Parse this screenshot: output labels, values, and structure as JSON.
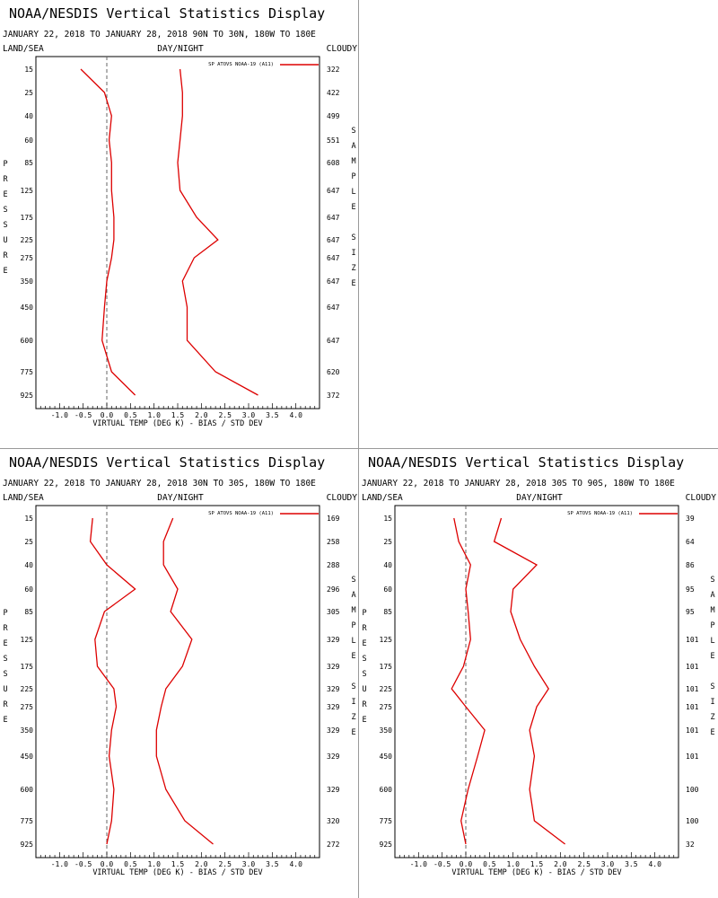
{
  "header": {
    "title": "NOAA/NESDIS Vertical Statistics Display",
    "top_left": "LAND/SEA",
    "top_center": "DAY/NIGHT",
    "top_right": "CLOUDY",
    "left_axis_label": "PRESSURE",
    "right_axis_label": "SAMPLE SIZE",
    "legend_label": "SP ATOVS NOAA-19 (A11)"
  },
  "colors": {
    "series": "#dd0000",
    "zero_line": "#666666",
    "frame": "#000000"
  },
  "chart_data": [
    {
      "type": "line",
      "subtitle": "JANUARY 22, 2018 TO JANUARY 28, 2018  90N TO 30N, 180W TO 180E",
      "xlabel": "VIRTUAL TEMP (DEG K) - BIAS / STD DEV",
      "ylabel": "PRESSURE",
      "xlim": [
        -1.5,
        4.5
      ],
      "x_ticks": [
        "-1.0",
        "-0.5",
        "0.0",
        "0.5",
        "1.0",
        "1.5",
        "2.0",
        "2.5",
        "3.0",
        "3.5",
        "4.0"
      ],
      "pressure_levels": [
        "15",
        "25",
        "40",
        "60",
        "85",
        "125",
        "175",
        "225",
        "275",
        "350",
        "450",
        "600",
        "775",
        "925"
      ],
      "sample_size": [
        "322",
        "422",
        "499",
        "551",
        "608",
        "647",
        "647",
        "647",
        "647",
        "647",
        "647",
        "647",
        "620",
        "372"
      ],
      "legend_position": "top-right",
      "series": [
        {
          "name": "SP ATOVS NOAA-19 (A11)",
          "bias": [
            -0.55,
            -0.05,
            0.1,
            0.05,
            0.1,
            0.1,
            0.15,
            0.15,
            0.1,
            0.0,
            -0.05,
            -0.1,
            0.1,
            0.6
          ],
          "std_dev": [
            1.55,
            1.6,
            1.6,
            1.55,
            1.5,
            1.55,
            1.9,
            2.35,
            1.85,
            1.6,
            1.7,
            1.7,
            2.3,
            3.2
          ]
        }
      ]
    },
    {
      "type": "line",
      "subtitle": "JANUARY 22, 2018 TO JANUARY 28, 2018  30N TO 30S, 180W TO 180E",
      "xlabel": "VIRTUAL TEMP (DEG K) - BIAS / STD DEV",
      "ylabel": "PRESSURE",
      "xlim": [
        -1.5,
        4.5
      ],
      "x_ticks": [
        "-1.0",
        "-0.5",
        "0.0",
        "0.5",
        "1.0",
        "1.5",
        "2.0",
        "2.5",
        "3.0",
        "3.5",
        "4.0"
      ],
      "pressure_levels": [
        "15",
        "25",
        "40",
        "60",
        "85",
        "125",
        "175",
        "225",
        "275",
        "350",
        "450",
        "600",
        "775",
        "925"
      ],
      "sample_size": [
        "169",
        "258",
        "288",
        "296",
        "305",
        "329",
        "329",
        "329",
        "329",
        "329",
        "329",
        "329",
        "320",
        "272"
      ],
      "legend_position": "top-right",
      "series": [
        {
          "name": "SP ATOVS NOAA-19 (A11)",
          "bias": [
            -0.3,
            -0.35,
            0.0,
            0.6,
            -0.05,
            -0.25,
            -0.2,
            0.15,
            0.2,
            0.1,
            0.05,
            0.15,
            0.1,
            0.0
          ],
          "std_dev": [
            1.4,
            1.2,
            1.2,
            1.5,
            1.35,
            1.8,
            1.6,
            1.25,
            1.15,
            1.05,
            1.05,
            1.25,
            1.65,
            2.25
          ]
        }
      ]
    },
    {
      "type": "line",
      "subtitle": "JANUARY 22, 2018 TO JANUARY 28, 2018  30S TO 90S, 180W TO 180E",
      "xlabel": "VIRTUAL TEMP (DEG K) - BIAS / STD DEV",
      "ylabel": "PRESSURE",
      "xlim": [
        -1.5,
        4.5
      ],
      "x_ticks": [
        "-1.0",
        "-0.5",
        "0.0",
        "0.5",
        "1.0",
        "1.5",
        "2.0",
        "2.5",
        "3.0",
        "3.5",
        "4.0"
      ],
      "pressure_levels": [
        "15",
        "25",
        "40",
        "60",
        "85",
        "125",
        "175",
        "225",
        "275",
        "350",
        "450",
        "600",
        "775",
        "925"
      ],
      "sample_size": [
        "39",
        "64",
        "86",
        "95",
        "95",
        "101",
        "101",
        "101",
        "101",
        "101",
        "101",
        "100",
        "100",
        "32"
      ],
      "legend_position": "top-right",
      "series": [
        {
          "name": "SP ATOVS NOAA-19 (A11)",
          "bias": [
            -0.25,
            -0.15,
            0.1,
            0.0,
            0.05,
            0.1,
            -0.05,
            -0.3,
            0.0,
            0.4,
            0.25,
            0.05,
            -0.1,
            0.0
          ],
          "std_dev": [
            0.75,
            0.6,
            1.5,
            1.0,
            0.95,
            1.15,
            1.45,
            1.75,
            1.5,
            1.35,
            1.45,
            1.35,
            1.45,
            2.1
          ]
        }
      ]
    }
  ]
}
